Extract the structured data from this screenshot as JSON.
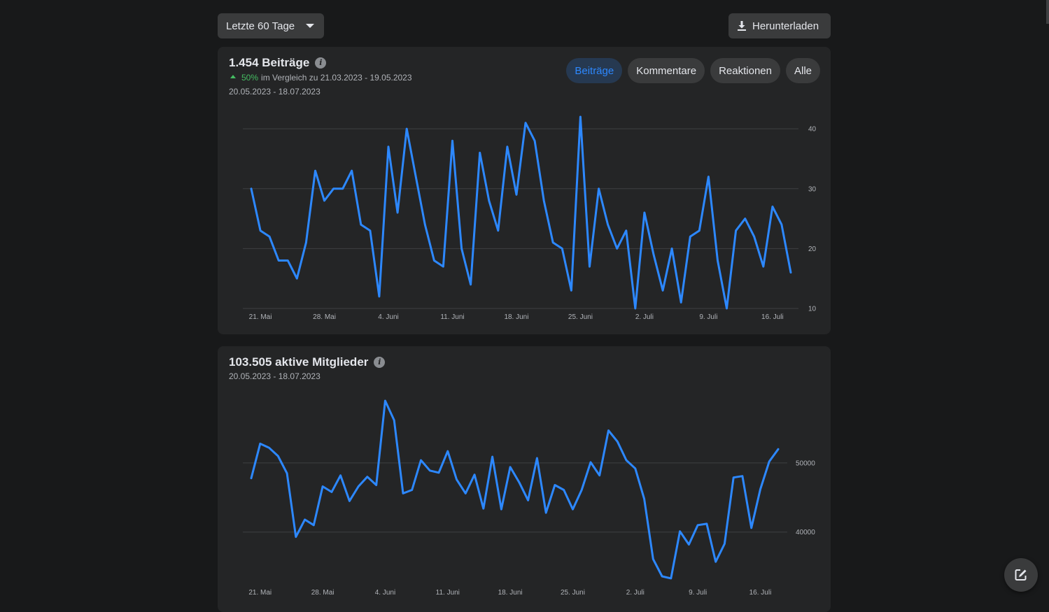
{
  "toolbar": {
    "range_label": "Letzte 60 Tage",
    "download_label": "Herunterladen"
  },
  "posts_card": {
    "title": "1.454 Beiträge",
    "change_pct": "50%",
    "comparison_text": "im Vergleich zu 21.03.2023 - 19.05.2023",
    "date_range": "20.05.2023 - 18.07.2023",
    "tabs": [
      {
        "label": "Beiträge",
        "active": true
      },
      {
        "label": "Kommentare",
        "active": false
      },
      {
        "label": "Reaktionen",
        "active": false
      },
      {
        "label": "Alle",
        "active": false
      }
    ]
  },
  "members_card": {
    "title": "103.505 aktive Mitglieder",
    "date_range": "20.05.2023 - 18.07.2023"
  },
  "colors": {
    "line": "#2d88ff",
    "positive": "#45bd62",
    "background": "#18191a",
    "card": "#242526"
  },
  "icons": {
    "range_caret": "chevron-down-icon",
    "download": "download-icon",
    "info": "info-icon",
    "compose": "compose-icon"
  },
  "chart_data": [
    {
      "type": "line",
      "ylim": [
        10,
        42
      ],
      "yticks": [
        10,
        20,
        30,
        40
      ],
      "xticks": [
        "21. Mai",
        "28. Mai",
        "4. Juni",
        "11. Juni",
        "18. Juni",
        "25. Juni",
        "2. Juli",
        "9. Juli",
        "16. Juli"
      ],
      "xtick_index": [
        1,
        8,
        15,
        22,
        29,
        36,
        43,
        50,
        57
      ],
      "grid": true,
      "values": [
        30,
        23,
        22,
        18,
        18,
        15,
        21,
        33,
        28,
        30,
        30,
        33,
        24,
        23,
        12,
        37,
        26,
        40,
        32,
        24,
        18,
        17,
        38,
        20,
        14,
        36,
        28,
        23,
        37,
        29,
        41,
        38,
        28,
        21,
        20,
        13,
        42,
        17,
        30,
        24,
        20,
        23,
        10,
        26,
        19,
        13,
        20,
        11,
        22,
        23,
        32,
        18,
        10,
        23,
        25,
        22,
        17,
        27,
        24,
        16
      ]
    },
    {
      "type": "line",
      "ylim": [
        34000,
        59000
      ],
      "yticks": [
        40000,
        50000
      ],
      "xticks": [
        "21. Mai",
        "28. Mai",
        "4. Juni",
        "11. Juni",
        "18. Juni",
        "25. Juni",
        "2. Juli",
        "9. Juli",
        "16. Juli"
      ],
      "xtick_index": [
        1,
        8,
        15,
        22,
        29,
        36,
        43,
        50,
        57
      ],
      "grid": true,
      "values": [
        47800,
        52800,
        52200,
        51000,
        48500,
        39300,
        41800,
        41000,
        46600,
        45800,
        48200,
        44500,
        46600,
        48000,
        46800,
        59000,
        56200,
        45600,
        46100,
        50400,
        48900,
        48600,
        51700,
        47600,
        45600,
        48300,
        43400,
        50900,
        43300,
        49400,
        47200,
        44600,
        50700,
        42800,
        46800,
        46100,
        43300,
        46100,
        50100,
        48200,
        54700,
        53100,
        50400,
        49200,
        44800,
        36100,
        33600,
        33300,
        40100,
        38200,
        41000,
        41200,
        35700,
        38300,
        47900,
        48100,
        40600,
        46200,
        50200,
        52000
      ]
    }
  ]
}
